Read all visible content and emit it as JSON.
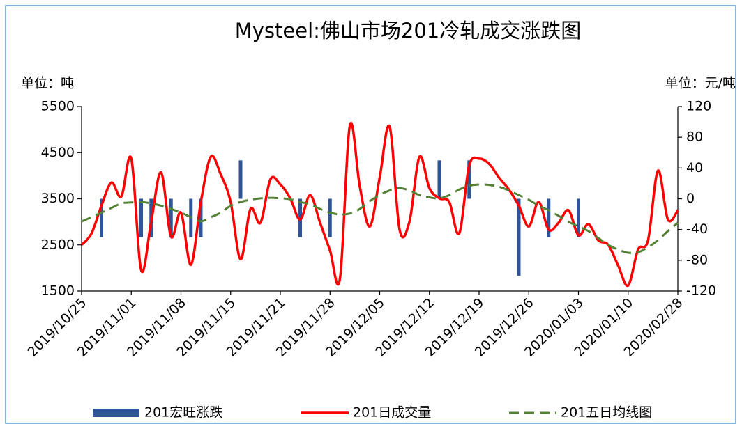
{
  "chart_data": {
    "type": "combo",
    "title": "Mysteel:佛山市场201冷轧成交涨跌图",
    "y_label": "单位：吨",
    "y2_label": "单位：元/吨",
    "categories": [
      "2019/10/25",
      null,
      null,
      null,
      null,
      "2019/11/01",
      null,
      null,
      null,
      null,
      "2019/11/08",
      null,
      null,
      null,
      null,
      "2019/11/15",
      null,
      null,
      null,
      null,
      "2019/11/21",
      null,
      null,
      null,
      null,
      "2019/11/28",
      null,
      null,
      null,
      null,
      "2019/12/05",
      null,
      null,
      null,
      null,
      "2019/12/12",
      null,
      null,
      null,
      null,
      "2019/12/19",
      null,
      null,
      null,
      null,
      "2019/12/26",
      null,
      null,
      null,
      null,
      "2020/01/03",
      null,
      null,
      null,
      null,
      "2020/01/10",
      null,
      null,
      null,
      null,
      "2020/02/28"
    ],
    "ylim": [
      1500,
      5500
    ],
    "yticks": [
      1500,
      2500,
      3500,
      4500,
      5500
    ],
    "y2lim": [
      -120,
      120
    ],
    "y2ticks": [
      -120,
      -80,
      -40,
      0,
      40,
      80,
      120
    ],
    "legend": "bottom",
    "series": [
      {
        "name": "201宏旺涨跌",
        "type": "bar",
        "axis": "y2",
        "color": "#2f5597",
        "values": [
          0,
          0,
          -50,
          0,
          0,
          0,
          -50,
          -50,
          0,
          -50,
          0,
          -50,
          -50,
          0,
          0,
          0,
          50,
          0,
          0,
          0,
          0,
          0,
          -50,
          0,
          0,
          -50,
          0,
          0,
          0,
          0,
          0,
          0,
          0,
          0,
          0,
          0,
          50,
          0,
          0,
          50,
          0,
          0,
          0,
          0,
          -100,
          0,
          0,
          -50,
          0,
          0,
          -50,
          0,
          0,
          0,
          0,
          0,
          0,
          0,
          0,
          0,
          0
        ]
      },
      {
        "name": "201日成交量",
        "type": "line",
        "color": "#ff0000",
        "dashed": false,
        "values": [
          2500,
          2750,
          3350,
          3850,
          3550,
          4370,
          1950,
          3000,
          4070,
          2680,
          3200,
          2070,
          3430,
          4410,
          4030,
          3430,
          2190,
          3280,
          2980,
          3920,
          3810,
          3510,
          3050,
          3580,
          2980,
          2380,
          1770,
          5090,
          3760,
          2900,
          3960,
          5060,
          2830,
          3010,
          4410,
          3730,
          3510,
          3430,
          2750,
          4220,
          4370,
          4260,
          3960,
          3700,
          3350,
          2900,
          3430,
          2830,
          2980,
          3250,
          2710,
          2950,
          2600,
          2500,
          2050,
          1620,
          2400,
          2600,
          4110,
          3050,
          3250
        ]
      },
      {
        "name": "201五日均线图",
        "type": "line",
        "color": "#548235",
        "dashed": true,
        "values": [
          3010,
          3100,
          3200,
          3300,
          3400,
          3420,
          3430,
          3400,
          3350,
          3280,
          3200,
          3100,
          3010,
          3100,
          3200,
          3350,
          3430,
          3480,
          3510,
          3520,
          3510,
          3490,
          3430,
          3380,
          3280,
          3200,
          3160,
          3180,
          3280,
          3450,
          3580,
          3680,
          3730,
          3680,
          3580,
          3530,
          3510,
          3580,
          3700,
          3780,
          3810,
          3800,
          3760,
          3680,
          3580,
          3480,
          3350,
          3250,
          3130,
          3000,
          2900,
          2800,
          2650,
          2500,
          2400,
          2330,
          2340,
          2450,
          2600,
          2800,
          2980
        ]
      }
    ]
  }
}
